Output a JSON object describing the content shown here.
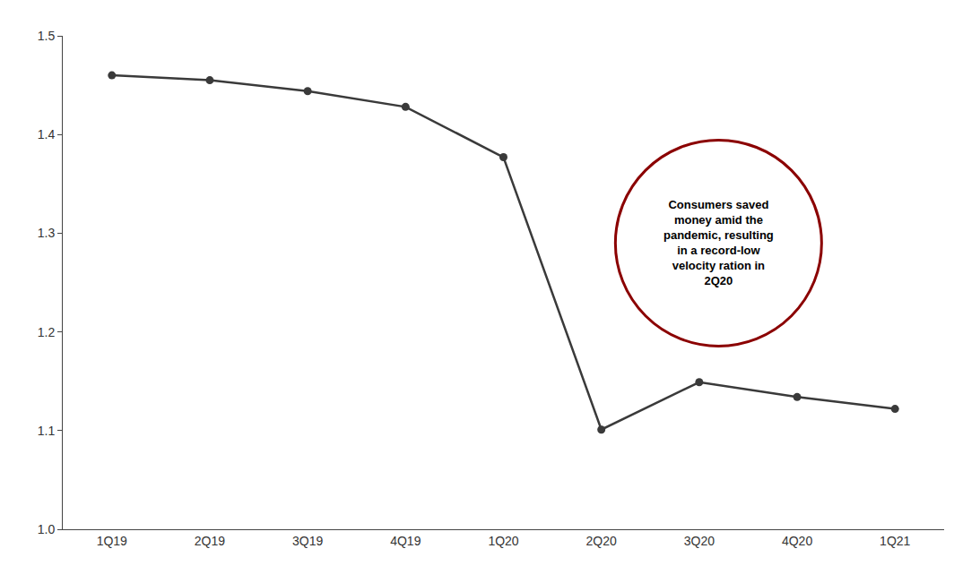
{
  "chart_data": {
    "type": "line",
    "categories": [
      "1Q19",
      "2Q19",
      "3Q19",
      "4Q19",
      "1Q20",
      "2Q20",
      "3Q20",
      "4Q20",
      "1Q21"
    ],
    "values": [
      1.46,
      1.455,
      1.444,
      1.428,
      1.377,
      1.101,
      1.149,
      1.134,
      1.122
    ],
    "color": "#3a3a3a",
    "marker": "circle",
    "ylim": [
      1.0,
      1.5
    ],
    "yticks": [
      {
        "value": 1,
        "label": "1.0"
      },
      1.1,
      1.2,
      1.3,
      1.4,
      1.5
    ],
    "grid": false,
    "annotation": {
      "text": "Consumers saved\nmoney amid the\npandemic, resulting\nin a record-low\nvelocity ration in\n2Q20",
      "color": "#8b0000"
    }
  }
}
